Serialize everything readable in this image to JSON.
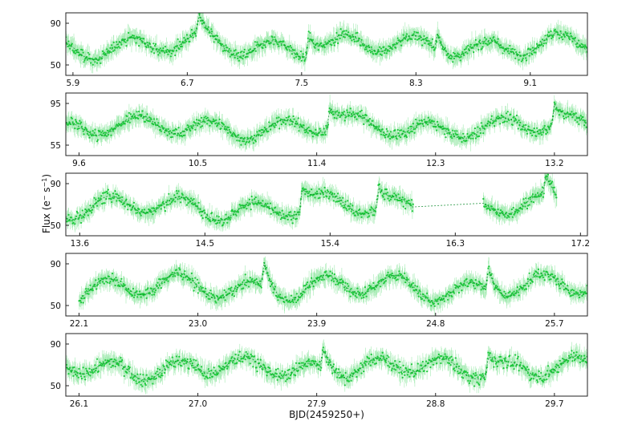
{
  "chart_data": {
    "type": "scatter",
    "xlabel": "BJD(2459250+)",
    "ylabel": "Flux (e⁻ s⁻¹)",
    "ylabel_parts": {
      "main": "Flux (e",
      "minus_sup": "−",
      "mid": " s",
      "exp_sup": "−1",
      "close": ")"
    },
    "grid": false,
    "legend": "none",
    "colors": {
      "points": "#1ec83c",
      "errorbars": "#8fe6a0",
      "trend": "#0a8a2a",
      "frame": "#222222"
    },
    "panels": [
      {
        "xlim": [
          5.85,
          9.5
        ],
        "ylim": [
          40,
          100
        ],
        "xticks": [
          5.9,
          6.7,
          7.5,
          8.3,
          9.1
        ],
        "xtick_labels": [
          "5.9",
          "6.7",
          "7.5",
          "8.3",
          "9.1"
        ],
        "yticks": [
          50,
          90
        ],
        "ytick_labels": [
          "50",
          "90"
        ],
        "baseline": 68,
        "amplitude": 9,
        "period": 0.5,
        "scatter": 7,
        "gaps": [],
        "flares": [
          {
            "x": 6.78,
            "peak": 93
          },
          {
            "x": 7.55,
            "peak": 96
          },
          {
            "x": 8.45,
            "peak": 90
          }
        ]
      },
      {
        "xlim": [
          9.5,
          13.45
        ],
        "ylim": [
          45,
          105
        ],
        "xticks": [
          9.6,
          10.5,
          11.4,
          12.3,
          13.2
        ],
        "xtick_labels": [
          "9.6",
          "10.5",
          "11.4",
          "12.3",
          "13.2"
        ],
        "yticks": [
          55,
          95
        ],
        "ytick_labels": [
          "55",
          "95"
        ],
        "baseline": 72,
        "amplitude": 8,
        "period": 0.55,
        "scatter": 7,
        "gaps": [],
        "flares": [
          {
            "x": 11.5,
            "peak": 100
          },
          {
            "x": 13.2,
            "peak": 98
          }
        ]
      },
      {
        "xlim": [
          13.5,
          17.25
        ],
        "ylim": [
          40,
          100
        ],
        "xticks": [
          13.6,
          14.5,
          15.4,
          16.3,
          17.2
        ],
        "xtick_labels": [
          "13.6",
          "14.5",
          "15.4",
          "16.3",
          "17.2"
        ],
        "yticks": [
          50,
          90
        ],
        "ytick_labels": [
          "50",
          "90"
        ],
        "baseline": 67,
        "amplitude": 9,
        "period": 0.52,
        "scatter": 7,
        "gaps": [
          [
            16.0,
            16.5
          ],
          [
            17.03,
            17.25
          ]
        ],
        "flares": [
          {
            "x": 15.2,
            "peak": 95
          },
          {
            "x": 15.75,
            "peak": 93
          },
          {
            "x": 16.95,
            "peak": 92
          }
        ]
      },
      {
        "xlim": [
          22.0,
          25.95
        ],
        "ylim": [
          40,
          100
        ],
        "xticks": [
          22.1,
          23.0,
          23.9,
          24.8,
          25.7
        ],
        "xtick_labels": [
          "22.1",
          "23.0",
          "23.9",
          "24.8",
          "25.7"
        ],
        "yticks": [
          50,
          90
        ],
        "ytick_labels": [
          "50",
          "90"
        ],
        "baseline": 67,
        "amplitude": 10,
        "period": 0.55,
        "scatter": 7,
        "gaps": [
          [
            22.0,
            22.1
          ]
        ],
        "flares": [
          {
            "x": 23.5,
            "peak": 98
          },
          {
            "x": 25.2,
            "peak": 96
          }
        ]
      },
      {
        "xlim": [
          26.0,
          29.95
        ],
        "ylim": [
          40,
          100
        ],
        "xticks": [
          26.1,
          27.0,
          27.9,
          28.8,
          29.7
        ],
        "xtick_labels": [
          "26.1",
          "27.0",
          "27.9",
          "28.8",
          "29.7"
        ],
        "yticks": [
          50,
          90
        ],
        "ytick_labels": [
          "50",
          "90"
        ],
        "baseline": 67,
        "amplitude": 8,
        "period": 0.5,
        "scatter": 8,
        "gaps": [],
        "flares": [
          {
            "x": 27.95,
            "peak": 94
          },
          {
            "x": 29.2,
            "peak": 92
          }
        ]
      }
    ]
  }
}
